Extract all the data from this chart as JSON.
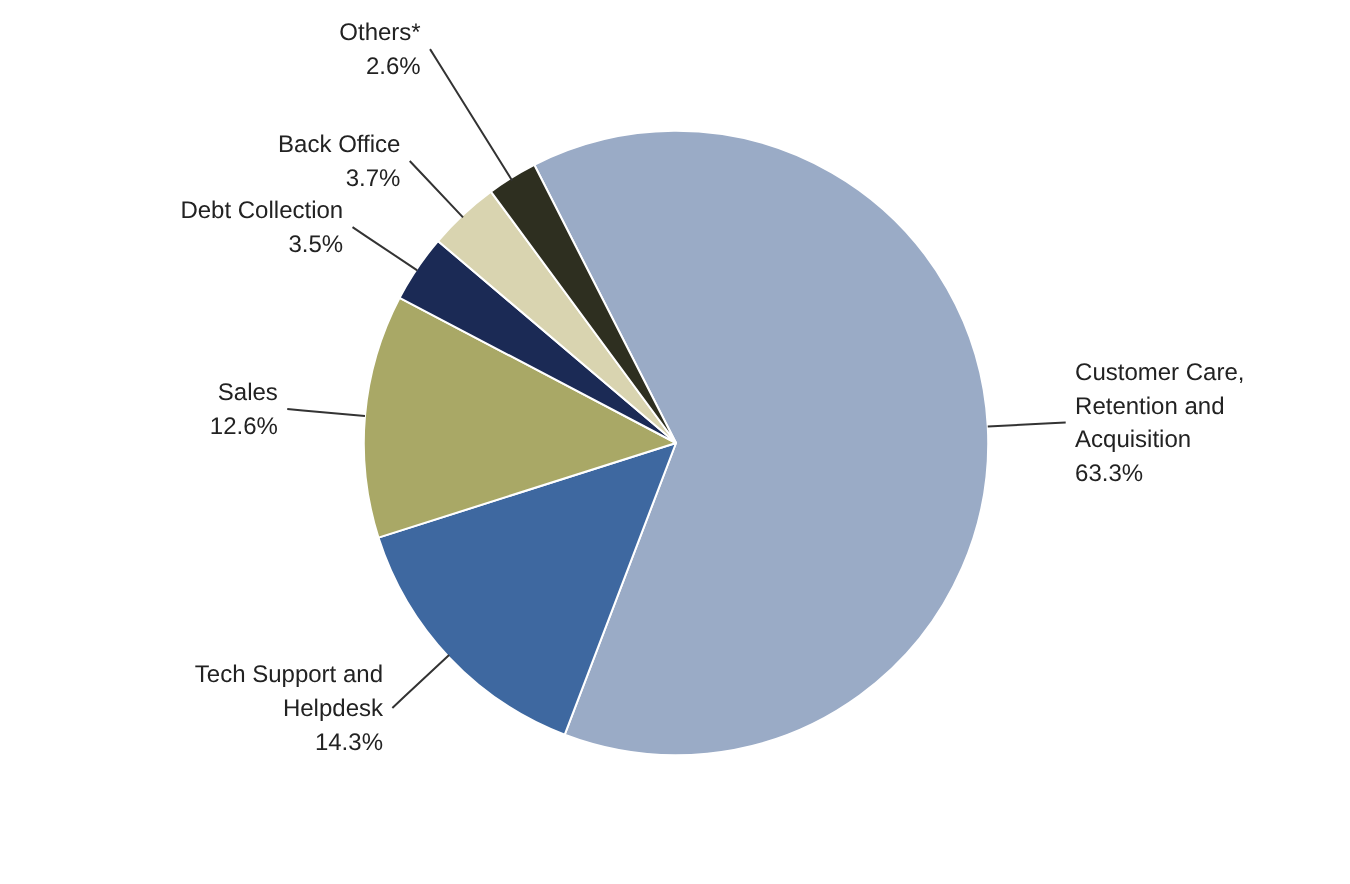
{
  "chart_data": {
    "type": "pie",
    "categories": [
      "Customer Care, Retention and Acquisition",
      "Tech Support and Helpdesk",
      "Sales",
      "Debt Collection",
      "Back Office",
      "Others*"
    ],
    "values": [
      63.3,
      14.3,
      12.6,
      3.5,
      3.7,
      2.6
    ],
    "value_labels": [
      "63.3%",
      "14.3%",
      "12.6%",
      "3.5%",
      "3.7%",
      "2.6%"
    ],
    "colors": [
      "#9aabc6",
      "#3e68a0",
      "#a9a866",
      "#1b2a55",
      "#d9d4b0",
      "#2e2f20"
    ]
  }
}
